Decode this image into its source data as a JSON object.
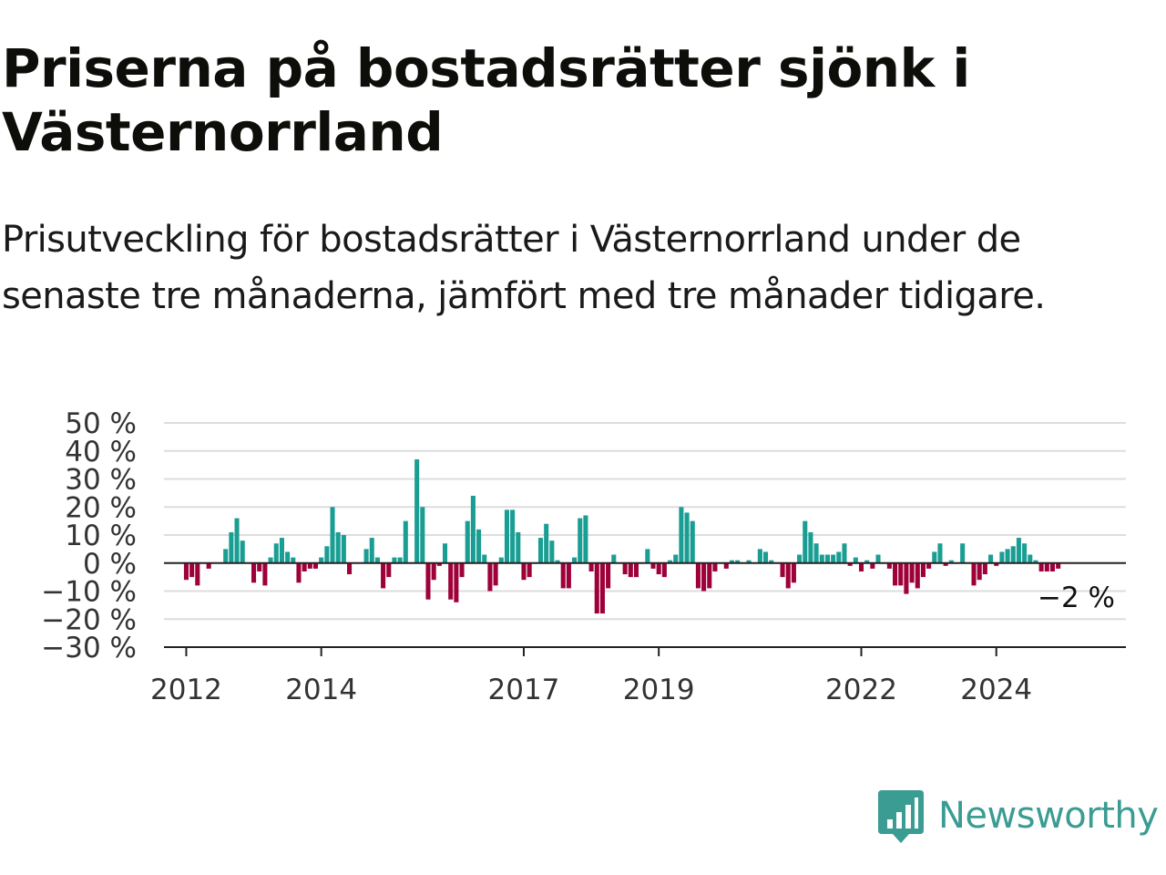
{
  "title": "Priserna på bostadsrätter sjönk i Västernorrland",
  "subtitle": "Prisutveckling för bostadsrätter i Västernorrland under de senaste tre månaderna, jämfört med tre månader tidigare.",
  "logo": {
    "text": "Newsworthy",
    "icon": "newsworthy-chart-icon"
  },
  "colors": {
    "positive": "#1a9e93",
    "negative": "#9e0039",
    "grid": "#dddddd",
    "axis": "#222222",
    "accent": "#3a9c93"
  },
  "chart_data": {
    "type": "bar",
    "unit": "%",
    "ylim": [
      -30,
      50
    ],
    "yticks": [
      50,
      40,
      30,
      20,
      10,
      0,
      -10,
      -20,
      -30
    ],
    "ytick_labels": [
      "50 %",
      "40 %",
      "30 %",
      "20 %",
      "10 %",
      "0 %",
      "−10 %",
      "−20 %",
      "−30 %"
    ],
    "xlim": [
      2011.67,
      2025.92
    ],
    "xticks": [
      2012,
      2014,
      2017,
      2019,
      2022,
      2024
    ],
    "xtick_labels": [
      "2012",
      "2014",
      "2017",
      "2019",
      "2022",
      "2024"
    ],
    "grid": true,
    "last_value_label": "−2 %",
    "series": [
      {
        "x_start": 2012.0,
        "x_step_months": 1,
        "values": [
          -6,
          -5,
          -8,
          0,
          -2,
          0,
          0,
          5,
          11,
          16,
          8,
          0,
          -7,
          -3,
          -8,
          2,
          7,
          9,
          4,
          2,
          -7,
          -3,
          -2,
          -2,
          2,
          6,
          20,
          11,
          10,
          -4,
          0,
          0,
          5,
          9,
          2,
          -9,
          -5,
          2,
          2,
          15,
          0,
          37,
          20,
          -13,
          -6,
          -1,
          7,
          -13,
          -14,
          -5,
          15,
          24,
          12,
          3,
          -10,
          -8,
          2,
          19,
          19,
          11,
          -6,
          -5,
          0,
          9,
          14,
          8,
          1,
          -9,
          -9,
          2,
          16,
          17,
          -3,
          -18,
          -18,
          -9,
          3,
          0,
          -4,
          -5,
          -5,
          0,
          5,
          -2,
          -4,
          -5,
          1,
          3,
          20,
          18,
          15,
          -9,
          -10,
          -9,
          -3,
          0,
          -2,
          1,
          1,
          0,
          1,
          0,
          5,
          4,
          1,
          0,
          -5,
          -9,
          -7,
          3,
          15,
          11,
          7,
          3,
          3,
          3,
          4,
          7,
          -1,
          2,
          -3,
          1,
          -2,
          3,
          0,
          -2,
          -8,
          -8,
          -11,
          -7,
          -9,
          -5,
          -2,
          4,
          7,
          -1,
          1,
          0,
          7,
          0,
          -8,
          -6,
          -4,
          3,
          -1,
          4,
          5,
          6,
          9,
          7,
          3,
          1,
          -3,
          -3,
          -3,
          -2
        ]
      }
    ]
  }
}
